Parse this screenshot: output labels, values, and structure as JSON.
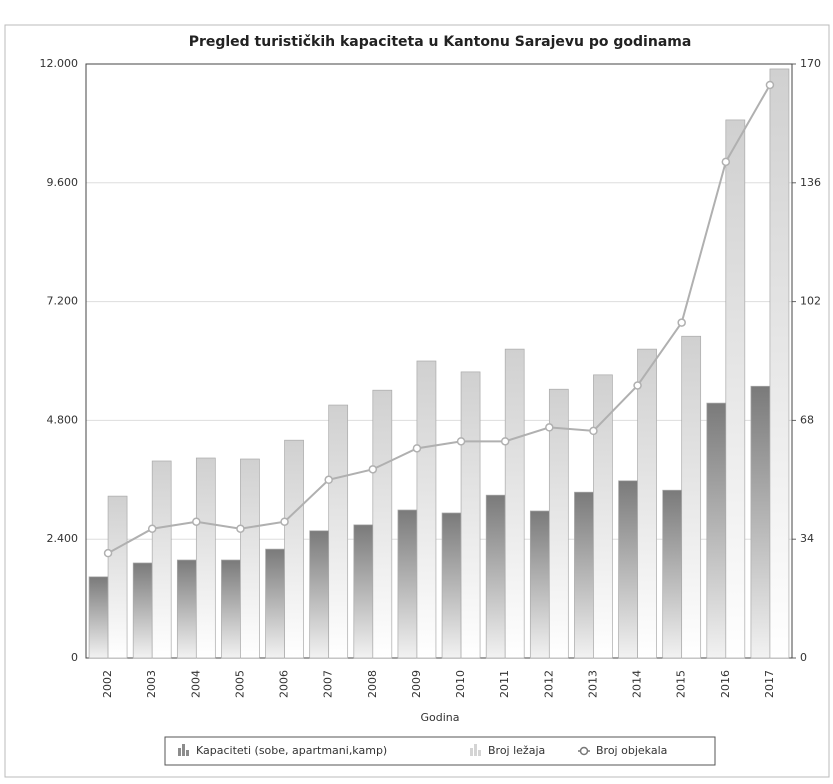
{
  "chart_data": {
    "type": "bar",
    "title": "Pregled turističkih kapaciteta u Kantonu Sarajevu po godinama",
    "xlabel": "Godina",
    "categories": [
      "2002",
      "2003",
      "2004",
      "2005",
      "2006",
      "2007",
      "2008",
      "2009",
      "2010",
      "2011",
      "2012",
      "2013",
      "2014",
      "2015",
      "2016",
      "2017"
    ],
    "series": [
      {
        "name": "Kapaciteti (sobe, apartmani,kamp)",
        "type": "bar",
        "color": "#8c8c8c",
        "values": [
          1640,
          1920,
          1980,
          1980,
          2200,
          2570,
          2690,
          2990,
          2930,
          3290,
          2970,
          3350,
          3580,
          3390,
          5150,
          5490
        ]
      },
      {
        "name": "Broj ležaja",
        "type": "bar",
        "color": "#d4d4d4",
        "values": [
          3270,
          3980,
          4040,
          4020,
          4400,
          5110,
          5410,
          6000,
          5780,
          6240,
          5430,
          5720,
          6240,
          6500,
          10870,
          11900
        ]
      },
      {
        "name": "Broj objekala",
        "type": "line",
        "axis": "y2",
        "color": "#b0b0b0",
        "values": [
          30,
          37,
          39,
          37,
          39,
          51,
          54,
          60,
          62,
          62,
          66,
          65,
          78,
          96,
          142,
          164
        ]
      }
    ],
    "ylim": [
      0,
      12000
    ],
    "yticks": [
      0,
      {
        "value": 2400,
        "label": "2.400"
      },
      {
        "value": 4800,
        "label": "4.800"
      },
      {
        "value": 7200,
        "label": "7.200"
      },
      {
        "value": 9600,
        "label": "9.600"
      },
      {
        "value": 12000,
        "label": "12.000"
      }
    ],
    "y2lim": [
      0,
      170
    ],
    "y2ticks": [
      0,
      34,
      68,
      102,
      136,
      170
    ],
    "grid": true
  }
}
